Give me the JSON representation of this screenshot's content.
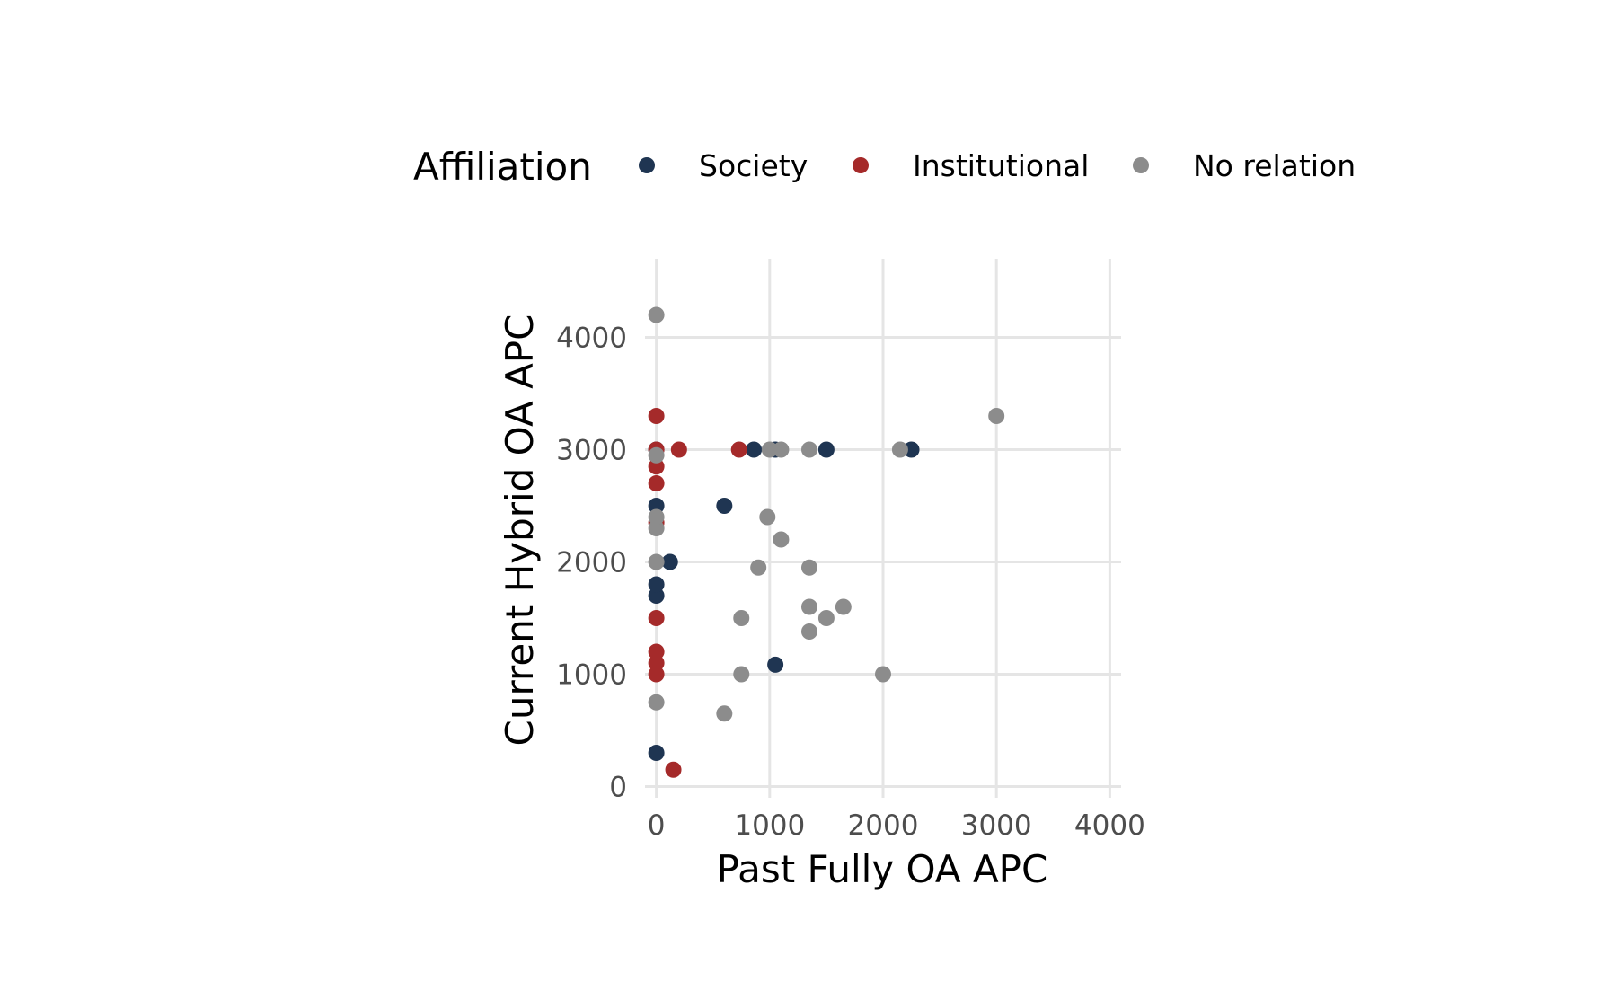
{
  "chart_data": {
    "type": "scatter",
    "xlabel": "Past Fully OA APC",
    "ylabel": "Current Hybrid OA APC",
    "xlim": [
      -100,
      4100
    ],
    "ylim": [
      -100,
      4700
    ],
    "x_ticks": [
      0,
      1000,
      2000,
      3000,
      4000
    ],
    "y_ticks": [
      0,
      1000,
      2000,
      3000,
      4000
    ],
    "grid": true,
    "legend": {
      "title": "Affiliation",
      "placement": "top"
    },
    "series": [
      {
        "name": "Society",
        "color": "#1f3552",
        "points": [
          [
            0,
            300
          ],
          [
            0,
            1700
          ],
          [
            0,
            1800
          ],
          [
            0,
            2500
          ],
          [
            0,
            3000
          ],
          [
            120,
            2000
          ],
          [
            600,
            2500
          ],
          [
            860,
            3000
          ],
          [
            1050,
            3000
          ],
          [
            1500,
            3000
          ],
          [
            1050,
            1085
          ],
          [
            2250,
            3000
          ]
        ]
      },
      {
        "name": "Institutional",
        "color": "#a52a2a",
        "points": [
          [
            150,
            150
          ],
          [
            0,
            1000
          ],
          [
            0,
            1100
          ],
          [
            0,
            1200
          ],
          [
            0,
            1500
          ],
          [
            0,
            2350
          ],
          [
            0,
            2700
          ],
          [
            0,
            2850
          ],
          [
            0,
            3000
          ],
          [
            0,
            3300
          ],
          [
            200,
            3000
          ],
          [
            730,
            3000
          ]
        ]
      },
      {
        "name": "No relation",
        "color": "#8c8c8c",
        "points": [
          [
            0,
            750
          ],
          [
            0,
            2000
          ],
          [
            0,
            2300
          ],
          [
            0,
            2400
          ],
          [
            0,
            2950
          ],
          [
            0,
            4200
          ],
          [
            600,
            650
          ],
          [
            750,
            1000
          ],
          [
            750,
            1500
          ],
          [
            900,
            1950
          ],
          [
            980,
            2400
          ],
          [
            1000,
            3000
          ],
          [
            1100,
            3000
          ],
          [
            1100,
            2200
          ],
          [
            1350,
            3000
          ],
          [
            1350,
            1950
          ],
          [
            1350,
            1600
          ],
          [
            1350,
            1380
          ],
          [
            1500,
            1500
          ],
          [
            1650,
            1600
          ],
          [
            2000,
            1000
          ],
          [
            2150,
            3000
          ],
          [
            3000,
            3300
          ]
        ]
      }
    ]
  }
}
